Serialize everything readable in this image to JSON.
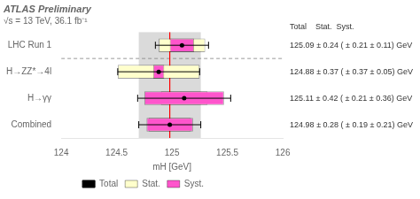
{
  "chart_data": {
    "type": "forest",
    "orientation": "horizontal",
    "title": "ATLAS",
    "title_suffix": "Preliminary",
    "subtitle": "√s = 13 TeV, 36.1 fb⁻¹",
    "xlabel": "mH [GeV]",
    "categories": [
      "LHC Run 1",
      "H→ZZ*→4l",
      "H→γγ",
      "Combined"
    ],
    "series": [
      {
        "name": "Total",
        "type": "errorbar",
        "color": "black",
        "values": [
          125.09,
          124.88,
          125.11,
          124.98
        ],
        "errors": [
          0.24,
          0.37,
          0.42,
          0.28
        ]
      },
      {
        "name": "Stat.",
        "type": "box",
        "color": "#ffffcc",
        "values": [
          125.09,
          124.88,
          125.11,
          124.98
        ],
        "errors": [
          0.21,
          0.37,
          0.21,
          0.19
        ]
      },
      {
        "name": "Syst.",
        "type": "box",
        "color": "#ff55cc",
        "values": [
          125.09,
          124.88,
          125.11,
          124.98
        ],
        "errors": [
          0.11,
          0.05,
          0.36,
          0.21
        ]
      }
    ],
    "data_labels": true,
    "value_labels": [
      "125.09 ± 0.24 ( ± 0.21 ± 0.11) GeV",
      "124.88 ± 0.37 ( ± 0.37 ± 0.05) GeV",
      "125.11 ± 0.42 ( ± 0.21 ± 0.36) GeV",
      "124.98 ± 0.28 ( ± 0.19 ± 0.21) GeV"
    ],
    "value_labels_header": "Total    Stat.  Syst.",
    "band": {
      "center": 124.98,
      "half_width": 0.28,
      "color": "lightgray"
    },
    "reference_line": {
      "value": 124.98,
      "color": "red"
    },
    "separator_after": "LHC Run 1",
    "xlim": [
      124.0,
      126.0
    ],
    "xticks": [
      124.0,
      124.5,
      125.0,
      125.5,
      126.0
    ],
    "grid": false,
    "legend": "bottom"
  }
}
